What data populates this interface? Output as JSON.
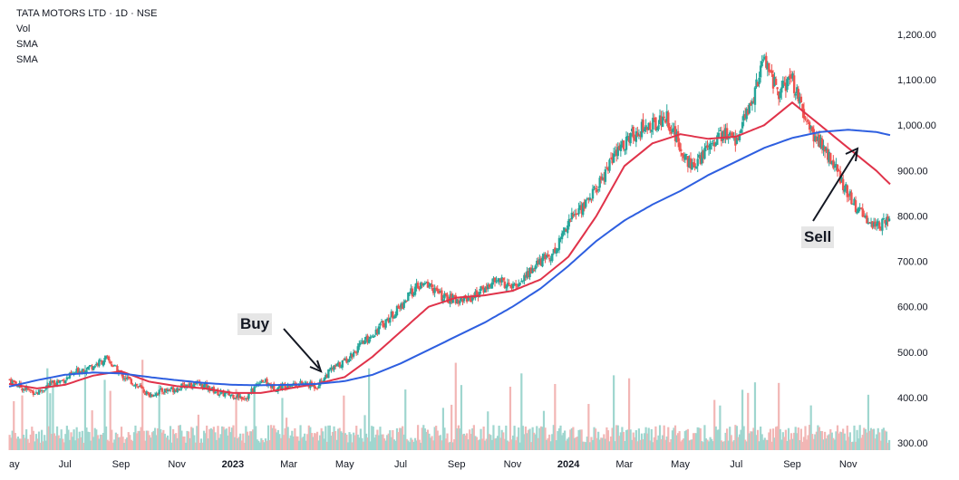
{
  "legend": {
    "title": "TATA MOTORS LTD · 1D · NSE",
    "vol": "Vol",
    "sma1": "SMA",
    "sma2": "SMA"
  },
  "annotations": {
    "buy": "Buy",
    "sell": "Sell"
  },
  "colors": {
    "up": "#26a69a",
    "down": "#ef5350",
    "sma_fast": "#e0334a",
    "sma_slow": "#2e5fe0",
    "vol_up": "#9fd6cf",
    "vol_down": "#f2b6b5"
  },
  "chart_data": {
    "type": "line",
    "title": "TATA MOTORS LTD · 1D · NSE",
    "ylabel": "",
    "xlabel": "",
    "ylim": [
      300,
      1200
    ],
    "yticks": [
      "1,200.00",
      "1,100.00",
      "1,000.00",
      "900.00",
      "800.00",
      "700.00",
      "600.00",
      "500.00",
      "400.00",
      "300.00"
    ],
    "ytick_values": [
      1200,
      1100,
      1000,
      900,
      800,
      700,
      600,
      500,
      400,
      300
    ],
    "xticks": [
      {
        "label": "ay",
        "t": 0.0,
        "year": false
      },
      {
        "label": "Jul",
        "t": 2.0,
        "year": false
      },
      {
        "label": "Sep",
        "t": 4.0,
        "year": false
      },
      {
        "label": "Nov",
        "t": 6.0,
        "year": false
      },
      {
        "label": "2023",
        "t": 8.0,
        "year": true
      },
      {
        "label": "Mar",
        "t": 10.0,
        "year": false
      },
      {
        "label": "May",
        "t": 12.0,
        "year": false
      },
      {
        "label": "Jul",
        "t": 14.0,
        "year": false
      },
      {
        "label": "Sep",
        "t": 16.0,
        "year": false
      },
      {
        "label": "Nov",
        "t": 18.0,
        "year": false
      },
      {
        "label": "2024",
        "t": 20.0,
        "year": true
      },
      {
        "label": "Mar",
        "t": 22.0,
        "year": false
      },
      {
        "label": "May",
        "t": 24.0,
        "year": false
      },
      {
        "label": "Jul",
        "t": 26.0,
        "year": false
      },
      {
        "label": "Sep",
        "t": 28.0,
        "year": false
      },
      {
        "label": "Nov",
        "t": 30.0,
        "year": false
      }
    ],
    "x_range_months": [
      0,
      31.5
    ],
    "price_series": {
      "name": "TATA MOTORS close",
      "t": [
        0,
        0.5,
        1,
        1.5,
        2,
        2.5,
        3,
        3.5,
        4,
        4.5,
        5,
        5.5,
        6,
        6.5,
        7,
        7.5,
        8,
        8.5,
        9,
        9.5,
        10,
        10.5,
        11,
        11.5,
        12,
        12.5,
        13,
        13.5,
        14,
        14.5,
        15,
        15.5,
        16,
        16.5,
        17,
        17.5,
        18,
        18.5,
        19,
        19.5,
        20,
        20.5,
        21,
        21.5,
        22,
        22.5,
        23,
        23.5,
        24,
        24.5,
        25,
        25.5,
        26,
        26.5,
        27,
        27.5,
        28,
        28.5,
        29,
        29.5,
        30,
        30.5,
        31,
        31.5
      ],
      "close": [
        440,
        420,
        410,
        430,
        440,
        460,
        470,
        485,
        450,
        430,
        405,
        415,
        420,
        430,
        425,
        410,
        405,
        400,
        440,
        420,
        430,
        430,
        425,
        460,
        480,
        510,
        540,
        570,
        600,
        640,
        650,
        620,
        615,
        620,
        640,
        660,
        640,
        670,
        700,
        720,
        790,
        820,
        860,
        920,
        960,
        990,
        1000,
        1020,
        950,
        900,
        960,
        980,
        970,
        1040,
        1150,
        1070,
        1100,
        1000,
        960,
        910,
        850,
        800,
        780,
        790
      ]
    },
    "series": [
      {
        "name": "SMA (fast)",
        "t": [
          0,
          1,
          2,
          3,
          4,
          5,
          6,
          7,
          8,
          9,
          10,
          11,
          12,
          13,
          14,
          15,
          16,
          17,
          18,
          19,
          20,
          21,
          22,
          23,
          24,
          25,
          26,
          27,
          28,
          29,
          30,
          31,
          31.5
        ],
        "values": [
          430,
          420,
          428,
          448,
          458,
          435,
          425,
          420,
          410,
          410,
          420,
          430,
          445,
          490,
          545,
          600,
          620,
          625,
          635,
          660,
          710,
          800,
          910,
          960,
          980,
          970,
          975,
          1000,
          1050,
          1000,
          950,
          900,
          870
        ]
      },
      {
        "name": "SMA (slow)",
        "t": [
          0,
          1,
          2,
          3,
          4,
          5,
          6,
          7,
          8,
          9,
          10,
          11,
          12,
          13,
          14,
          15,
          16,
          17,
          18,
          19,
          20,
          21,
          22,
          23,
          24,
          25,
          26,
          27,
          28,
          29,
          30,
          31,
          31.5
        ],
        "values": [
          424,
          438,
          450,
          455,
          453,
          445,
          438,
          432,
          428,
          427,
          428,
          430,
          436,
          450,
          475,
          505,
          535,
          565,
          600,
          640,
          690,
          745,
          790,
          825,
          855,
          890,
          920,
          950,
          972,
          985,
          990,
          985,
          978
        ]
      }
    ],
    "volume": {
      "note": "volume histogram in lower pane; values in relative units",
      "ymax": 100
    },
    "annotations": [
      {
        "text": "Buy",
        "t": 11.7,
        "price": 430
      },
      {
        "text": "Sell",
        "t": 30.0,
        "price": 930
      }
    ]
  }
}
